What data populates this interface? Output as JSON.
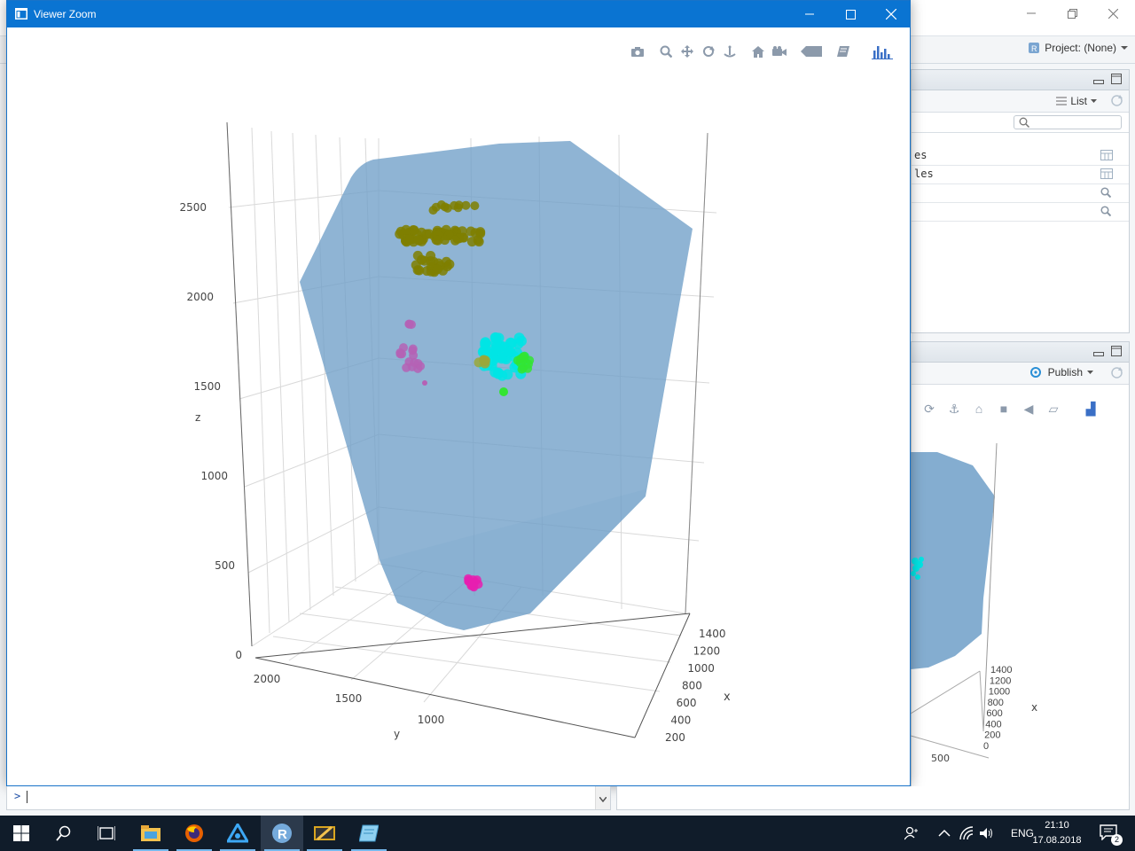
{
  "rstudio": {
    "project_label": "Project: (None)",
    "env_view_mode": "List",
    "env_rows": [
      {
        "text": "es",
        "icon": "table-icon"
      },
      {
        "text": "les",
        "icon": "table-icon"
      },
      {
        "text": "",
        "icon": "search-icon"
      },
      {
        "text": "",
        "icon": "search-icon"
      }
    ],
    "viewer_publish_label": "Publish",
    "console_prompt": ">"
  },
  "zoom_window": {
    "title": "Viewer Zoom",
    "modebar": [
      "camera-icon",
      "zoom-icon",
      "pan-icon",
      "orbit-rotation-icon",
      "turntable-rotation-icon",
      "home-icon",
      "camera-last-save-icon",
      "hover-closest-icon",
      "toggle-spike-icon",
      "plotly-logo-icon"
    ]
  },
  "chart_data": [
    {
      "type": "scatter3d",
      "title": "",
      "axes": {
        "x": {
          "label": "x",
          "ticks": [
            "200",
            "400",
            "600",
            "800",
            "1000",
            "1200",
            "1400"
          ]
        },
        "y": {
          "label": "y",
          "ticks": [
            "1000",
            "1500",
            "2000"
          ]
        },
        "z": {
          "label": "z",
          "ticks": [
            "0",
            "500",
            "1000",
            "1500",
            "2000",
            "2500"
          ],
          "range": [
            0,
            2800
          ]
        }
      },
      "grid": true,
      "legend": "none",
      "mesh": {
        "shape": "convex hull",
        "color": "#6f9fc8",
        "opacity": 0.75
      },
      "series": [
        {
          "color": "#7f7f00",
          "z_range": [
            2200,
            2550
          ]
        },
        {
          "color": "#00e5e5",
          "z_range": [
            1600,
            1800
          ]
        },
        {
          "color": "#33e533",
          "z_range": [
            1600,
            1750
          ]
        },
        {
          "color": "#9aa83a",
          "z_range": [
            1650,
            1700
          ]
        },
        {
          "color": "#b561b5",
          "z_range": [
            1550,
            1900
          ]
        },
        {
          "color": "#e61eb0",
          "z_range": [
            350,
            450
          ]
        }
      ]
    },
    {
      "type": "scatter3d",
      "axes": {
        "x": {
          "label": "x",
          "ticks": [
            "0",
            "200",
            "400",
            "600",
            "800",
            "1000",
            "1200",
            "1400"
          ]
        },
        "y": {
          "tick_visible": "500"
        }
      }
    }
  ],
  "taskbar": {
    "language": "ENG",
    "time": "21:10",
    "date": "17.08.2018",
    "notification_count": "2",
    "apps": [
      "start-icon",
      "search-icon",
      "task-view-icon",
      "file-explorer-icon",
      "firefox-icon",
      "app-icon",
      "rstudio-icon",
      "pencil-app-icon",
      "notepad-icon"
    ]
  }
}
